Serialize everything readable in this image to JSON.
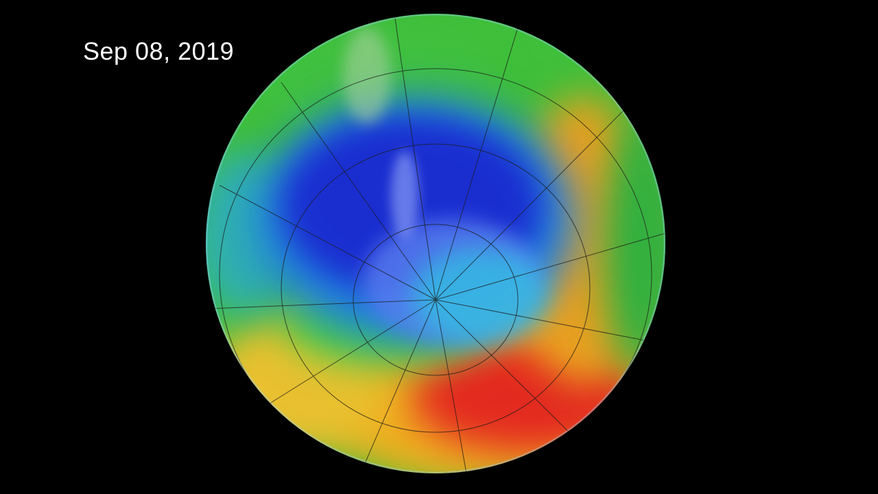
{
  "date_label": "Sep 08, 2019",
  "colors": {
    "background": "#000000",
    "low_ozone": "#1f2fd0",
    "mid_ozone": "#2ed04a",
    "high_ozone": "#e0201e",
    "land": "#a9c8f0"
  }
}
